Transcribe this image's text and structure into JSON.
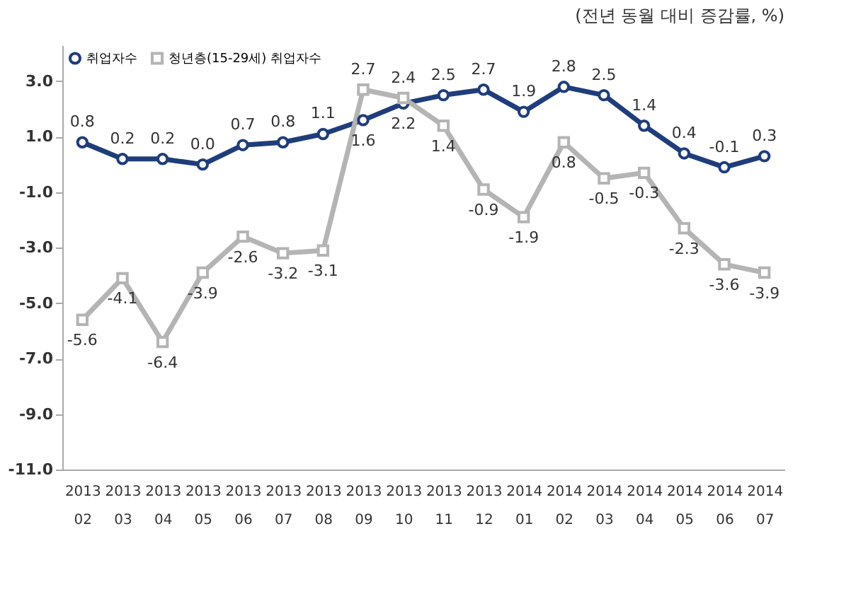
{
  "chart_data": {
    "type": "line",
    "title": "(전년 동월 대비 증감률, %)",
    "categories": [
      "2013\n02",
      "2013\n03",
      "2013\n04",
      "2013\n05",
      "2013\n06",
      "2013\n07",
      "2013\n08",
      "2013\n09",
      "2013\n10",
      "2013\n11",
      "2013\n12",
      "2014\n01",
      "2014\n02",
      "2014\n03",
      "2014\n04",
      "2014\n05",
      "2014\n06",
      "2014\n07"
    ],
    "series": [
      {
        "name": "취업자수",
        "color": "#1f3d7a",
        "marker": "circle",
        "values": [
          0.8,
          0.2,
          0.2,
          0.0,
          0.7,
          0.8,
          1.1,
          1.6,
          2.2,
          2.5,
          2.7,
          1.9,
          2.8,
          2.5,
          1.4,
          0.4,
          -0.1,
          0.3
        ],
        "value_labels": [
          "0.8",
          "0.2",
          "0.2",
          "0.0",
          "0.7",
          "0.8",
          "1.1",
          "1.6",
          "2.2",
          "2.5",
          "2.7",
          "1.9",
          "2.8",
          "2.5",
          "1.4",
          "0.4",
          "-0.1",
          "0.3"
        ]
      },
      {
        "name": "청년층(15-29세) 취업자수",
        "color": "#b4b4b4",
        "marker": "square",
        "values": [
          -5.6,
          -4.1,
          -6.4,
          -3.9,
          -2.6,
          -3.2,
          -3.1,
          2.7,
          2.4,
          1.4,
          -0.9,
          -1.9,
          0.8,
          -0.5,
          -0.3,
          -2.3,
          -3.6,
          -3.9
        ],
        "value_labels": [
          "-5.6",
          "-4.1",
          "-6.4",
          "-3.9",
          "-2.6",
          "-3.2",
          "-3.1",
          "2.7",
          "2.4",
          "1.4",
          "-0.9",
          "-1.9",
          "0.8",
          "-0.5",
          "-0.3",
          "-2.3",
          "-3.6",
          "-3.9"
        ]
      }
    ],
    "ylim": [
      -11,
      4.3
    ],
    "yticks": [
      {
        "value": -11,
        "label": "-11.0"
      },
      {
        "value": -9,
        "label": "-9.0"
      },
      {
        "value": -7,
        "label": "-7.0"
      },
      {
        "value": -5,
        "label": "-5.0"
      },
      {
        "value": -3,
        "label": "-3.0"
      },
      {
        "value": -1,
        "label": "-1.0"
      },
      {
        "value": 1,
        "label": "1.0"
      },
      {
        "value": 3,
        "label": "3.0"
      }
    ],
    "grid": false,
    "legend": "top left"
  }
}
